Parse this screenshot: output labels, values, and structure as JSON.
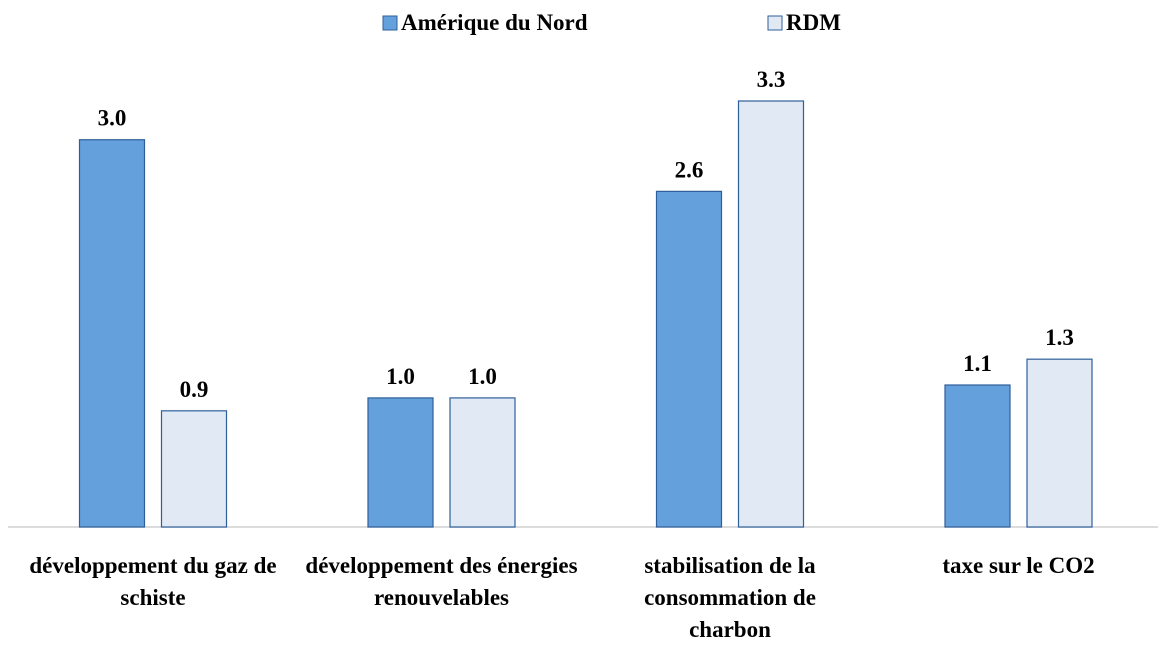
{
  "chart_data": {
    "type": "bar",
    "categories": [
      "développement du gaz de schiste",
      "développement des énergies renouvelables",
      "stabilisation de la consommation de charbon",
      "taxe sur le CO2"
    ],
    "series": [
      {
        "name": "Amérique du Nord",
        "color": "#64a0dc",
        "values": [
          3.0,
          1.0,
          2.6,
          1.1
        ],
        "value_labels": [
          "3.0",
          "1.0",
          "2.6",
          "1.1"
        ]
      },
      {
        "name": "RDM",
        "color": "#e0e9f4",
        "values": [
          0.9,
          1.0,
          3.3,
          1.3
        ],
        "value_labels": [
          "0.9",
          "1.0",
          "3.3",
          "1.3"
        ]
      }
    ]
  }
}
